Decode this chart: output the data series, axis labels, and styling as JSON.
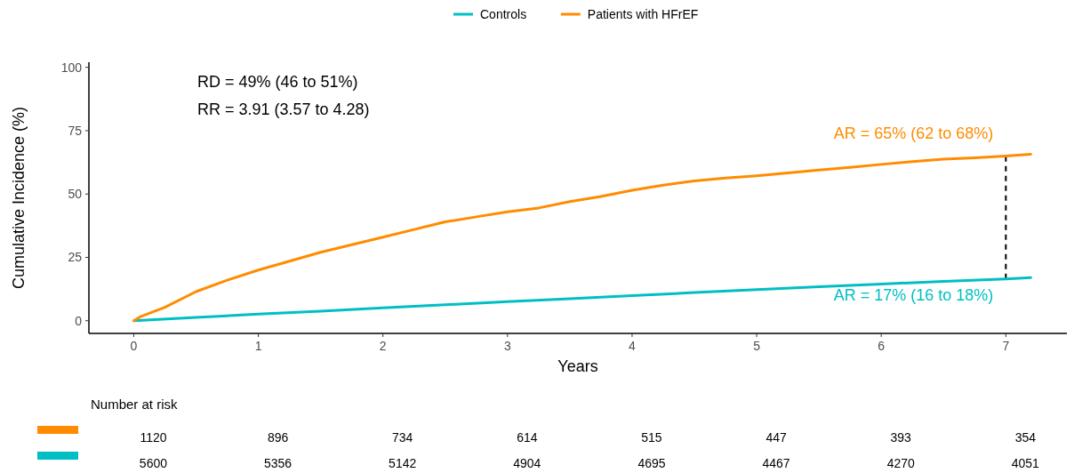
{
  "chart_data": {
    "type": "line",
    "xlabel": "Years",
    "ylabel": "Cumulative Incidence (%)",
    "xlim": [
      -0.36,
      7.49
    ],
    "ylim": [
      -5,
      102
    ],
    "xticks": [
      0,
      1,
      2,
      3,
      4,
      5,
      6,
      7
    ],
    "yticks": [
      0,
      25,
      50,
      75,
      100
    ],
    "grid": false,
    "legend": "top",
    "line_style": "solid",
    "marker": "none",
    "series": [
      {
        "name": "Controls",
        "color": "#00bfc4",
        "x": [
          0,
          0.5,
          1,
          1.5,
          2,
          2.5,
          3,
          3.5,
          4,
          4.5,
          5,
          5.5,
          6,
          6.5,
          7,
          7.2
        ],
        "values": [
          0,
          1.3,
          2.6,
          3.8,
          5.1,
          6.3,
          7.5,
          8.7,
          9.9,
          11.1,
          12.3,
          13.4,
          14.5,
          15.5,
          16.5,
          17
        ]
      },
      {
        "name": "Patients with HFrEF",
        "color": "#ff8c00",
        "x": [
          0,
          0.05,
          0.25,
          0.5,
          0.75,
          1,
          1.25,
          1.5,
          1.75,
          2,
          2.25,
          2.5,
          2.75,
          3,
          3.25,
          3.5,
          3.75,
          4,
          4.25,
          4.5,
          4.75,
          5,
          5.25,
          5.5,
          5.75,
          6,
          6.25,
          6.5,
          6.75,
          7,
          7.2
        ],
        "values": [
          0,
          1.5,
          5.3,
          11.5,
          16,
          20,
          23.5,
          27,
          30,
          33,
          36,
          39,
          41,
          43,
          44.5,
          47,
          49,
          51.5,
          53.5,
          55.2,
          56.3,
          57.2,
          58.3,
          59.5,
          60.5,
          61.7,
          62.8,
          63.8,
          64.3,
          65,
          65.7
        ]
      }
    ],
    "ref_lines": [
      {
        "axis": "x",
        "value": 7,
        "color": "#000000",
        "line_style": "dashed"
      }
    ],
    "annotations": [
      "RD = 49% (46 to 51%)",
      "RR = 3.91 (3.57 to 4.28)",
      {
        "text": "AR = 65% (62 to 68%)",
        "x": 7,
        "y": 65
      },
      {
        "text": "AR = 17% (16 to 18%)",
        "x": 7,
        "y": 17
      },
      "Number at risk",
      "1120",
      "896",
      "734",
      "614",
      "515",
      "447",
      "393",
      "354",
      "5600",
      "5356",
      "5142",
      "4904",
      "4695",
      "4467",
      "4270",
      "4051"
    ]
  }
}
